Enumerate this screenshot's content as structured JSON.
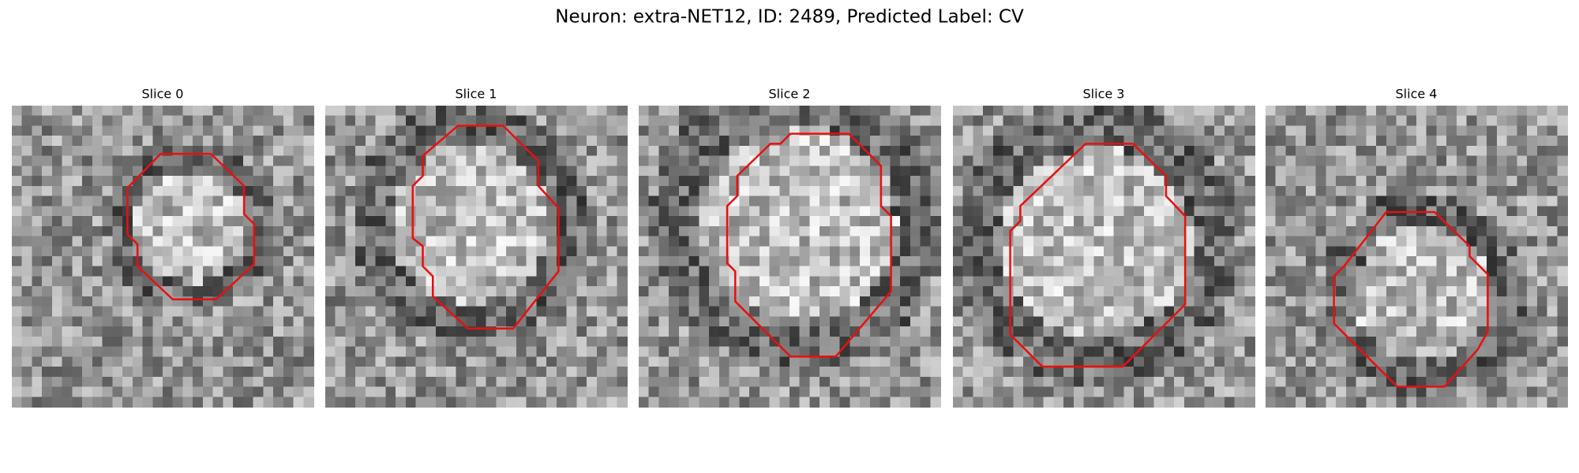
{
  "title": "Neuron: extra-NET12, ID: 2489, Predicted Label: CV",
  "panels": [
    {
      "title": "Slice 0"
    },
    {
      "title": "Slice 1"
    },
    {
      "title": "Slice 2"
    },
    {
      "title": "Slice 3"
    },
    {
      "title": "Slice 4"
    }
  ]
}
